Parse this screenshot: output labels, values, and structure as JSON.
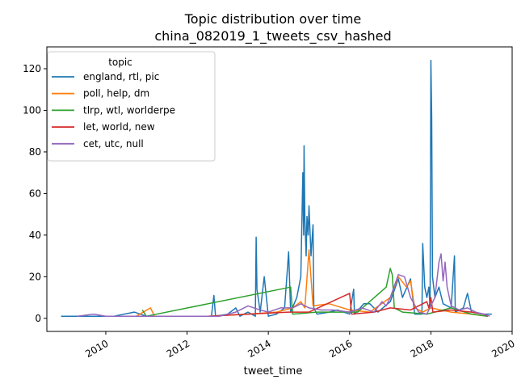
{
  "chart_data": {
    "type": "line",
    "title_line1": "Topic distribution over time",
    "title_line2": "china_082019_1_tweets_csv_hashed",
    "xlabel": "tweet_time",
    "ylabel": "",
    "xlim": [
      2008.55,
      2020.0
    ],
    "ylim": [
      -6.3,
      130.5
    ],
    "x_ticks": [
      {
        "value": 2010,
        "label": "2010"
      },
      {
        "value": 2012,
        "label": "2012"
      },
      {
        "value": 2014,
        "label": "2014"
      },
      {
        "value": 2016,
        "label": "2016"
      },
      {
        "value": 2018,
        "label": "2018"
      },
      {
        "value": 2020,
        "label": "2020"
      }
    ],
    "y_ticks": [
      {
        "value": 0,
        "label": "0"
      },
      {
        "value": 20,
        "label": "20"
      },
      {
        "value": 40,
        "label": "40"
      },
      {
        "value": 60,
        "label": "60"
      },
      {
        "value": 80,
        "label": "80"
      },
      {
        "value": 100,
        "label": "100"
      },
      {
        "value": 120,
        "label": "120"
      }
    ],
    "legend": {
      "title": "topic",
      "placement": "top-left"
    },
    "series": [
      {
        "name": "england, rtl, pic",
        "color": "#1f77b4",
        "points": [
          [
            2008.9,
            1
          ],
          [
            2009.5,
            1
          ],
          [
            2010.2,
            1
          ],
          [
            2010.7,
            3
          ],
          [
            2011.0,
            1
          ],
          [
            2011.5,
            1
          ],
          [
            2012.0,
            1
          ],
          [
            2012.6,
            1
          ],
          [
            2012.66,
            11
          ],
          [
            2012.7,
            1
          ],
          [
            2013.0,
            2
          ],
          [
            2013.2,
            5
          ],
          [
            2013.3,
            1
          ],
          [
            2013.5,
            3
          ],
          [
            2013.68,
            1
          ],
          [
            2013.7,
            39
          ],
          [
            2013.72,
            14
          ],
          [
            2013.8,
            3
          ],
          [
            2013.9,
            20
          ],
          [
            2014.0,
            1
          ],
          [
            2014.2,
            2
          ],
          [
            2014.4,
            5
          ],
          [
            2014.5,
            32
          ],
          [
            2014.55,
            3
          ],
          [
            2014.7,
            10
          ],
          [
            2014.8,
            20
          ],
          [
            2014.85,
            70
          ],
          [
            2014.87,
            40
          ],
          [
            2014.88,
            83
          ],
          [
            2014.9,
            48
          ],
          [
            2014.93,
            30
          ],
          [
            2014.95,
            49
          ],
          [
            2014.98,
            40
          ],
          [
            2015.0,
            54
          ],
          [
            2015.05,
            30
          ],
          [
            2015.1,
            45
          ],
          [
            2015.12,
            5
          ],
          [
            2015.2,
            2
          ],
          [
            2015.5,
            3
          ],
          [
            2015.7,
            4
          ],
          [
            2016.0,
            2
          ],
          [
            2016.1,
            14
          ],
          [
            2016.12,
            2
          ],
          [
            2016.35,
            7
          ],
          [
            2016.5,
            7
          ],
          [
            2016.7,
            3
          ],
          [
            2017.0,
            8
          ],
          [
            2017.2,
            19
          ],
          [
            2017.3,
            10
          ],
          [
            2017.5,
            19
          ],
          [
            2017.6,
            2
          ],
          [
            2017.78,
            2
          ],
          [
            2017.8,
            36
          ],
          [
            2017.85,
            15
          ],
          [
            2017.9,
            10
          ],
          [
            2017.95,
            15
          ],
          [
            2017.98,
            5
          ],
          [
            2018.0,
            124
          ],
          [
            2018.02,
            97
          ],
          [
            2018.04,
            20
          ],
          [
            2018.1,
            10
          ],
          [
            2018.2,
            15
          ],
          [
            2018.3,
            7
          ],
          [
            2018.5,
            5
          ],
          [
            2018.58,
            30
          ],
          [
            2018.6,
            3
          ],
          [
            2018.8,
            5
          ],
          [
            2018.9,
            12
          ],
          [
            2019.0,
            3
          ],
          [
            2019.3,
            2
          ],
          [
            2019.5,
            2
          ]
        ]
      },
      {
        "name": "poll, help, dm",
        "color": "#ff7f0e",
        "points": [
          [
            2010.75,
            1
          ],
          [
            2011.1,
            5
          ],
          [
            2011.2,
            1
          ],
          [
            2012.5,
            1
          ],
          [
            2013.5,
            2
          ],
          [
            2014.2,
            3
          ],
          [
            2014.6,
            5
          ],
          [
            2014.8,
            8
          ],
          [
            2014.9,
            5
          ],
          [
            2015.0,
            33
          ],
          [
            2015.1,
            6
          ],
          [
            2015.5,
            7
          ],
          [
            2016.0,
            4
          ],
          [
            2016.5,
            3
          ],
          [
            2017.0,
            10
          ],
          [
            2017.2,
            20
          ],
          [
            2017.4,
            15
          ],
          [
            2017.5,
            18
          ],
          [
            2017.6,
            5
          ],
          [
            2017.8,
            3
          ],
          [
            2018.0,
            5
          ],
          [
            2018.5,
            3
          ],
          [
            2019.0,
            2
          ],
          [
            2019.4,
            1
          ]
        ]
      },
      {
        "name": "tlrp, wtl, worlderpe",
        "color": "#2ca02c",
        "points": [
          [
            2010.9,
            4
          ],
          [
            2011.0,
            1
          ],
          [
            2014.55,
            15
          ],
          [
            2014.6,
            2
          ],
          [
            2015.2,
            3
          ],
          [
            2016.2,
            3
          ],
          [
            2016.9,
            15
          ],
          [
            2017.0,
            24
          ],
          [
            2017.05,
            21
          ],
          [
            2017.1,
            5
          ],
          [
            2017.3,
            3
          ],
          [
            2017.9,
            2
          ],
          [
            2018.5,
            5
          ],
          [
            2019.0,
            2
          ],
          [
            2019.4,
            1
          ]
        ]
      },
      {
        "name": "let, world, new",
        "color": "#d62728",
        "points": [
          [
            2011.8,
            1
          ],
          [
            2012.5,
            1
          ],
          [
            2013.5,
            2
          ],
          [
            2014.5,
            3
          ],
          [
            2015.0,
            3
          ],
          [
            2016.0,
            12
          ],
          [
            2016.05,
            2
          ],
          [
            2016.6,
            3
          ],
          [
            2017.0,
            5
          ],
          [
            2017.5,
            4
          ],
          [
            2017.9,
            8
          ],
          [
            2017.95,
            5
          ],
          [
            2018.0,
            10
          ],
          [
            2018.05,
            3
          ],
          [
            2018.5,
            4
          ],
          [
            2019.0,
            3
          ],
          [
            2019.3,
            2
          ],
          [
            2019.4,
            1
          ]
        ]
      },
      {
        "name": "cet, utc, null",
        "color": "#9467bd",
        "points": [
          [
            2009.3,
            1
          ],
          [
            2009.7,
            2
          ],
          [
            2010.0,
            1
          ],
          [
            2010.5,
            1
          ],
          [
            2011.5,
            1
          ],
          [
            2012.2,
            1
          ],
          [
            2012.5,
            1
          ],
          [
            2012.8,
            1
          ],
          [
            2013.2,
            3
          ],
          [
            2013.5,
            6
          ],
          [
            2013.8,
            4
          ],
          [
            2014.0,
            3
          ],
          [
            2014.3,
            5
          ],
          [
            2014.6,
            5
          ],
          [
            2014.8,
            7
          ],
          [
            2015.0,
            5
          ],
          [
            2015.3,
            4
          ],
          [
            2015.6,
            4
          ],
          [
            2016.0,
            3
          ],
          [
            2016.3,
            5
          ],
          [
            2016.6,
            3
          ],
          [
            2016.8,
            8
          ],
          [
            2016.9,
            6
          ],
          [
            2017.0,
            10
          ],
          [
            2017.2,
            21
          ],
          [
            2017.35,
            20
          ],
          [
            2017.5,
            10
          ],
          [
            2017.7,
            3
          ],
          [
            2017.9,
            2
          ],
          [
            2018.1,
            10
          ],
          [
            2018.2,
            27
          ],
          [
            2018.25,
            31
          ],
          [
            2018.3,
            18
          ],
          [
            2018.35,
            27
          ],
          [
            2018.4,
            15
          ],
          [
            2018.5,
            6
          ],
          [
            2018.7,
            4
          ],
          [
            2018.9,
            5
          ],
          [
            2019.1,
            3
          ],
          [
            2019.3,
            2
          ],
          [
            2019.45,
            1
          ]
        ]
      }
    ]
  }
}
